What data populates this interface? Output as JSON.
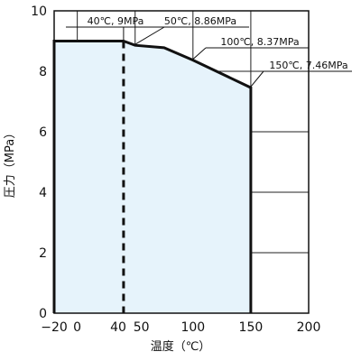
{
  "chart_data": {
    "type": "line",
    "xlabel": "温度（℃）",
    "ylabel": "圧力（MPa）",
    "xlim": [
      -20,
      200
    ],
    "ylim": [
      0,
      10
    ],
    "x_ticks": [
      {
        "value": -20,
        "label": "−20"
      },
      {
        "value": 0,
        "label": "0"
      },
      {
        "value": 40,
        "label": "40"
      },
      {
        "value": 50,
        "label": "50"
      },
      {
        "value": 100,
        "label": "100"
      },
      {
        "value": 150,
        "label": "150"
      },
      {
        "value": 200,
        "label": "200"
      }
    ],
    "y_ticks": [
      {
        "value": 0,
        "label": "0"
      },
      {
        "value": 2,
        "label": "2"
      },
      {
        "value": 4,
        "label": "4"
      },
      {
        "value": 6,
        "label": "6"
      },
      {
        "value": 8,
        "label": "8"
      },
      {
        "value": 10,
        "label": "10"
      }
    ],
    "grid": true,
    "series": [
      {
        "x": [
          -20,
          40,
          50,
          75,
          100,
          150,
          150,
          -20
        ],
        "y": [
          9,
          9,
          8.86,
          8.78,
          8.37,
          7.46,
          0,
          0
        ]
      }
    ],
    "reference_line": {
      "x": 40,
      "style": "dashed"
    },
    "fill_color": "#e6f3fb",
    "annotations": [
      {
        "text": "40℃, 9MPa",
        "x": 40,
        "y": 9
      },
      {
        "text": "50℃, 8.86MPa",
        "x": 50,
        "y": 8.86
      },
      {
        "text": "100℃, 8.37MPa",
        "x": 100,
        "y": 8.37
      },
      {
        "text": "150℃, 7.46MPa",
        "x": 150,
        "y": 7.46
      }
    ]
  }
}
